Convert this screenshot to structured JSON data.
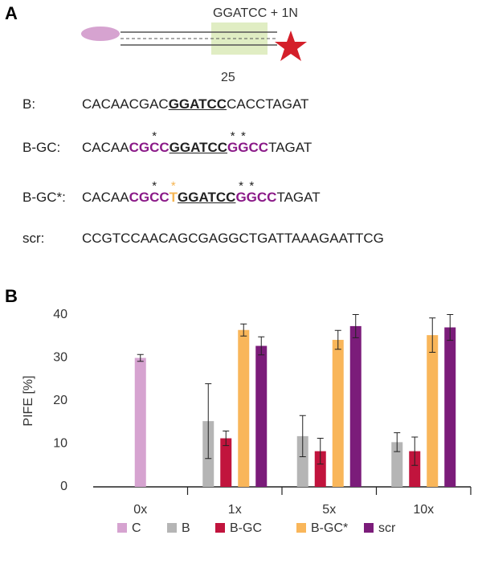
{
  "panel_a": {
    "label": "A",
    "diagram": {
      "top_label": "GGATCC + 1N",
      "bottom_label": "25"
    },
    "styles": {
      "gc": "#8b1a88",
      "insert": "#f5b553"
    },
    "sequences": [
      {
        "name": "B:",
        "segments": [
          {
            "text": "CACAACGAC"
          },
          {
            "text": "GGATCC",
            "style": "site"
          },
          {
            "text": "CACCTAGAT"
          }
        ]
      },
      {
        "name": "B-GC:",
        "segments": [
          {
            "text": "CACAA"
          },
          {
            "text": "CG",
            "style": "gc"
          },
          {
            "text": "C",
            "style": "gc",
            "star": "*"
          },
          {
            "text": "C",
            "style": "gc"
          },
          {
            "text": "GGATCC",
            "style": "site"
          },
          {
            "text": "G",
            "style": "gc",
            "star": "*"
          },
          {
            "text": "G",
            "style": "gc",
            "star": "*"
          },
          {
            "text": "CC",
            "style": "gc"
          },
          {
            "text": "TAGAT"
          }
        ]
      },
      {
        "name": "B-GC*:",
        "segments": [
          {
            "text": "CACAA"
          },
          {
            "text": "CG",
            "style": "gc"
          },
          {
            "text": "C",
            "style": "gc",
            "star": "*"
          },
          {
            "text": "C",
            "style": "gc"
          },
          {
            "text": "T",
            "style": "insert",
            "star": "*"
          },
          {
            "text": "GGATCC",
            "style": "site"
          },
          {
            "text": "G",
            "style": "gc",
            "star": "*"
          },
          {
            "text": "G",
            "style": "gc",
            "star": "*"
          },
          {
            "text": "CC",
            "style": "gc"
          },
          {
            "text": "TAGAT"
          }
        ]
      },
      {
        "name": "scr:",
        "segments": [
          {
            "text": "CCGTCCAACAGCGAGGCTGATTAAAGAATTCG"
          }
        ]
      }
    ]
  },
  "panel_b": {
    "label": "B"
  },
  "chart_data": {
    "type": "bar",
    "ylabel": "PIFE [%]",
    "categories": [
      "0x",
      "1x",
      "5x",
      "10x"
    ],
    "series": [
      {
        "name": "C",
        "color": "#d6a3d0",
        "values": [
          30,
          null,
          null,
          null
        ],
        "errors": [
          0.8,
          null,
          null,
          null
        ]
      },
      {
        "name": "B",
        "color": "#b5b5b5",
        "values": [
          null,
          15.3,
          11.8,
          10.4
        ],
        "errors": [
          null,
          8.7,
          4.8,
          2.2
        ]
      },
      {
        "name": "B-GC",
        "color": "#c1143d",
        "values": [
          null,
          11.3,
          8.3,
          8.3
        ],
        "errors": [
          null,
          1.7,
          3,
          3.3
        ]
      },
      {
        "name": "B-GC*",
        "color": "#f9b65a",
        "values": [
          null,
          36.5,
          34.2,
          35.3
        ],
        "errors": [
          null,
          1.4,
          2.2,
          4
        ]
      },
      {
        "name": "scr",
        "color": "#7b1c7a",
        "values": [
          null,
          32.8,
          37.4,
          37.1
        ],
        "errors": [
          null,
          2.1,
          2.7,
          3
        ]
      }
    ],
    "ylim": [
      0,
      40
    ],
    "yticks": [
      0,
      10,
      20,
      30,
      40
    ],
    "grid": false
  }
}
